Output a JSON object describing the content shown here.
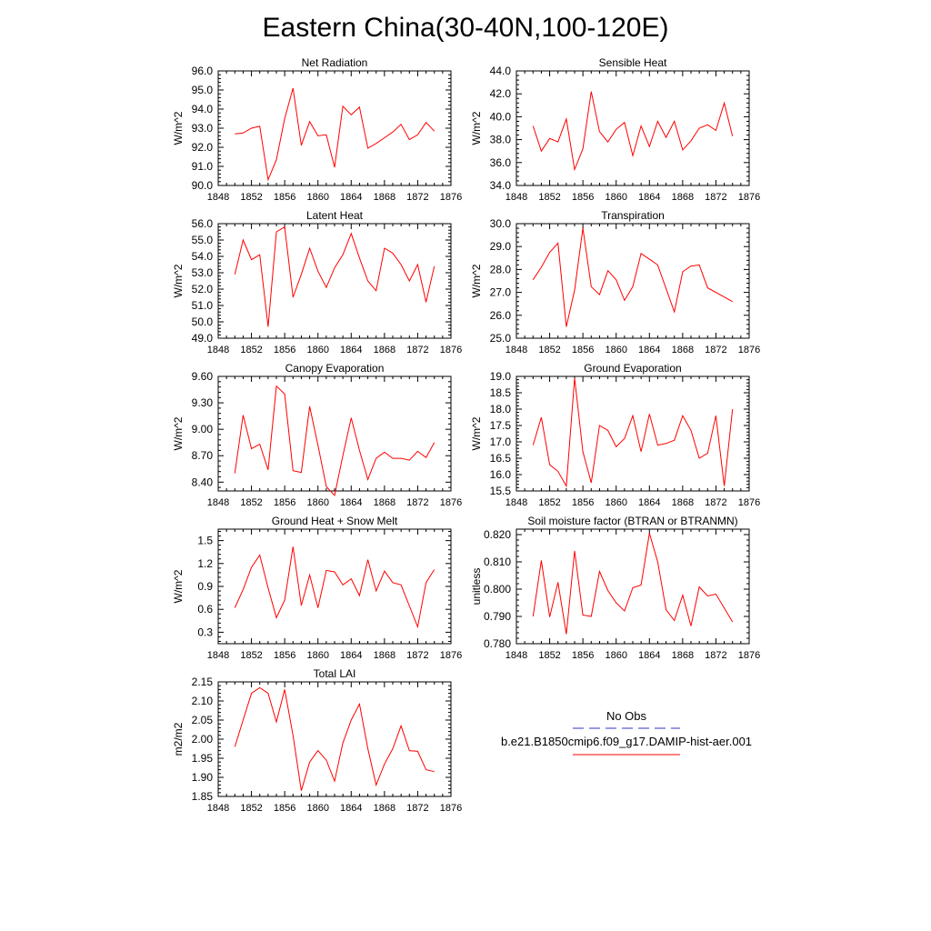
{
  "page": {
    "title": "Eastern China(30-40N,100-120E)"
  },
  "legend": {
    "obs_label": "No Obs",
    "model_label": "b.e21.B1850cmip6.f09_g17.DAMIP-hist-aer.001",
    "obs_color": "#3333cc",
    "model_color": "#ff0000"
  },
  "chart_data": [
    {
      "type": "line",
      "title": "Net Radiation",
      "ylabel": "W/m^2",
      "xlim": [
        1848,
        1876
      ],
      "xticks": [
        "1848",
        "1852",
        "1856",
        "1860",
        "1864",
        "1868",
        "1872",
        "1876"
      ],
      "ylim": [
        90,
        96
      ],
      "yticks": [
        "90.0",
        "91.0",
        "92.0",
        "93.0",
        "94.0",
        "95.0",
        "96.0"
      ],
      "series": [
        {
          "color": "#ff0000",
          "x": [
            1850,
            1851,
            1852,
            1853,
            1854,
            1855,
            1856,
            1857,
            1858,
            1859,
            1860,
            1861,
            1862,
            1863,
            1864,
            1865,
            1866,
            1867,
            1868,
            1869,
            1870,
            1871,
            1872,
            1873,
            1874
          ],
          "values": [
            92.7,
            92.75,
            93.0,
            93.1,
            90.3,
            91.35,
            93.5,
            95.1,
            92.1,
            93.35,
            92.6,
            92.65,
            90.95,
            94.15,
            93.7,
            94.1,
            91.95,
            92.2,
            92.5,
            92.8,
            93.2,
            92.4,
            92.65,
            93.3,
            92.85
          ]
        }
      ]
    },
    {
      "type": "line",
      "title": "Sensible Heat",
      "ylabel": "W/m^2",
      "xlim": [
        1848,
        1876
      ],
      "xticks": [
        "1848",
        "1852",
        "1856",
        "1860",
        "1864",
        "1868",
        "1872",
        "1876"
      ],
      "ylim": [
        34,
        44
      ],
      "yticks": [
        "34.0",
        "36.0",
        "38.0",
        "40.0",
        "42.0",
        "44.0"
      ],
      "series": [
        {
          "color": "#ff0000",
          "x": [
            1850,
            1851,
            1852,
            1853,
            1854,
            1855,
            1856,
            1857,
            1858,
            1859,
            1860,
            1861,
            1862,
            1863,
            1864,
            1865,
            1866,
            1867,
            1868,
            1869,
            1870,
            1871,
            1872,
            1873,
            1874
          ],
          "values": [
            39.2,
            37.0,
            38.1,
            37.8,
            39.8,
            35.4,
            37.2,
            42.2,
            38.7,
            37.8,
            38.9,
            39.5,
            36.6,
            39.2,
            37.4,
            39.6,
            38.2,
            39.6,
            37.1,
            37.9,
            39.0,
            39.3,
            38.8,
            41.2,
            38.3
          ]
        }
      ]
    },
    {
      "type": "line",
      "title": "Latent Heat",
      "ylabel": "W/m^2",
      "xlim": [
        1848,
        1876
      ],
      "xticks": [
        "1848",
        "1852",
        "1856",
        "1860",
        "1864",
        "1868",
        "1872",
        "1876"
      ],
      "ylim": [
        49,
        56
      ],
      "yticks": [
        "49.0",
        "50.0",
        "51.0",
        "52.0",
        "53.0",
        "54.0",
        "55.0",
        "56.0"
      ],
      "series": [
        {
          "color": "#ff0000",
          "x": [
            1850,
            1851,
            1852,
            1853,
            1854,
            1855,
            1856,
            1857,
            1858,
            1859,
            1860,
            1861,
            1862,
            1863,
            1864,
            1865,
            1866,
            1867,
            1868,
            1869,
            1870,
            1871,
            1872,
            1873,
            1874
          ],
          "values": [
            52.9,
            55.0,
            53.8,
            54.1,
            49.7,
            55.5,
            55.8,
            51.5,
            52.9,
            54.5,
            53.1,
            52.1,
            53.3,
            54.1,
            55.4,
            53.9,
            52.5,
            51.9,
            54.5,
            54.2,
            53.5,
            52.5,
            53.5,
            51.2,
            53.4
          ]
        }
      ]
    },
    {
      "type": "line",
      "title": "Transpiration",
      "ylabel": "W/m^2",
      "xlim": [
        1848,
        1876
      ],
      "xticks": [
        "1848",
        "1852",
        "1856",
        "1860",
        "1864",
        "1868",
        "1872",
        "1876"
      ],
      "ylim": [
        25,
        30
      ],
      "yticks": [
        "25.0",
        "26.0",
        "27.0",
        "28.0",
        "29.0",
        "30.0"
      ],
      "series": [
        {
          "color": "#ff0000",
          "x": [
            1850,
            1851,
            1852,
            1853,
            1854,
            1855,
            1856,
            1857,
            1858,
            1859,
            1860,
            1861,
            1862,
            1863,
            1864,
            1865,
            1867,
            1868,
            1869,
            1870,
            1871,
            1874
          ],
          "values": [
            27.55,
            28.1,
            28.75,
            29.15,
            25.5,
            27.1,
            29.8,
            27.25,
            26.9,
            27.95,
            27.55,
            26.65,
            27.25,
            28.7,
            28.45,
            28.2,
            26.15,
            27.9,
            28.15,
            28.2,
            27.2,
            26.6
          ]
        }
      ]
    },
    {
      "type": "line",
      "title": "Canopy Evaporation",
      "ylabel": "W/m^2",
      "xlim": [
        1848,
        1876
      ],
      "xticks": [
        "1848",
        "1852",
        "1856",
        "1860",
        "1864",
        "1868",
        "1872",
        "1876"
      ],
      "ylim": [
        8.3,
        9.6
      ],
      "yticks": [
        "8.40",
        "8.70",
        "9.00",
        "9.30",
        "9.60"
      ],
      "series": [
        {
          "color": "#ff0000",
          "x": [
            1850,
            1851,
            1852,
            1853,
            1854,
            1855,
            1856,
            1857,
            1858,
            1859,
            1860,
            1861,
            1862,
            1863,
            1864,
            1865,
            1866,
            1867,
            1868,
            1869,
            1870,
            1871,
            1872,
            1873,
            1874
          ],
          "values": [
            8.5,
            9.16,
            8.78,
            8.83,
            8.54,
            9.49,
            9.4,
            8.53,
            8.51,
            9.26,
            8.82,
            8.35,
            8.25,
            8.7,
            9.13,
            8.76,
            8.43,
            8.67,
            8.74,
            8.67,
            8.67,
            8.65,
            8.75,
            8.68,
            8.85
          ]
        }
      ]
    },
    {
      "type": "line",
      "title": "Ground Evaporation",
      "ylabel": "W/m^2",
      "xlim": [
        1848,
        1876
      ],
      "xticks": [
        "1848",
        "1852",
        "1856",
        "1860",
        "1864",
        "1868",
        "1872",
        "1876"
      ],
      "ylim": [
        15.5,
        19
      ],
      "yticks": [
        "15.5",
        "16.0",
        "16.5",
        "17.0",
        "17.5",
        "18.0",
        "18.5",
        "19.0"
      ],
      "series": [
        {
          "color": "#ff0000",
          "x": [
            1850,
            1851,
            1852,
            1853,
            1854,
            1855,
            1856,
            1857,
            1858,
            1859,
            1860,
            1861,
            1862,
            1863,
            1864,
            1865,
            1866,
            1867,
            1868,
            1869,
            1870,
            1871,
            1872,
            1873,
            1874
          ],
          "values": [
            16.9,
            17.75,
            16.3,
            16.1,
            15.65,
            18.95,
            16.7,
            15.75,
            17.5,
            17.35,
            16.85,
            17.1,
            17.8,
            16.7,
            17.85,
            16.9,
            16.95,
            17.05,
            17.8,
            17.35,
            16.5,
            16.65,
            17.8,
            15.65,
            18.0
          ]
        }
      ]
    },
    {
      "type": "line",
      "title": "Ground Heat + Snow Melt",
      "ylabel": "W/m^2",
      "xlim": [
        1848,
        1876
      ],
      "xticks": [
        "1848",
        "1852",
        "1856",
        "1860",
        "1864",
        "1868",
        "1872",
        "1876"
      ],
      "ylim": [
        0.15,
        1.65
      ],
      "yticks": [
        "0.3",
        "0.6",
        "0.9",
        "1.2",
        "1.5"
      ],
      "series": [
        {
          "color": "#ff0000",
          "x": [
            1850,
            1851,
            1852,
            1853,
            1854,
            1855,
            1856,
            1857,
            1858,
            1859,
            1860,
            1861,
            1862,
            1863,
            1864,
            1865,
            1866,
            1867,
            1868,
            1869,
            1870,
            1872,
            1873,
            1874
          ],
          "values": [
            0.62,
            0.86,
            1.15,
            1.31,
            0.88,
            0.49,
            0.72,
            1.42,
            0.65,
            1.05,
            0.62,
            1.11,
            1.09,
            0.92,
            1.0,
            0.78,
            1.25,
            0.84,
            1.1,
            0.95,
            0.92,
            0.37,
            0.95,
            1.12
          ]
        }
      ]
    },
    {
      "type": "line",
      "title": "Soil moisture factor (BTRAN or BTRANMN)",
      "ylabel": "unitless",
      "xlim": [
        1848,
        1876
      ],
      "xticks": [
        "1848",
        "1852",
        "1856",
        "1860",
        "1864",
        "1868",
        "1872",
        "1876"
      ],
      "ylim": [
        0.78,
        0.822
      ],
      "yticks": [
        "0.780",
        "0.790",
        "0.800",
        "0.810",
        "0.820"
      ],
      "series": [
        {
          "color": "#ff0000",
          "x": [
            1850,
            1851,
            1852,
            1853,
            1854,
            1855,
            1856,
            1857,
            1858,
            1859,
            1860,
            1861,
            1862,
            1863,
            1864,
            1865,
            1866,
            1867,
            1868,
            1869,
            1870,
            1871,
            1872,
            1874
          ],
          "values": [
            0.79,
            0.8105,
            0.7898,
            0.8025,
            0.7835,
            0.814,
            0.7905,
            0.79,
            0.8065,
            0.7995,
            0.795,
            0.792,
            0.8005,
            0.8015,
            0.8205,
            0.81,
            0.7925,
            0.7885,
            0.7978,
            0.7865,
            0.8008,
            0.7975,
            0.7982,
            0.788
          ]
        }
      ]
    },
    {
      "type": "line",
      "title": "Total LAI",
      "ylabel": "m2/m2",
      "xlim": [
        1848,
        1876
      ],
      "xticks": [
        "1848",
        "1852",
        "1856",
        "1860",
        "1864",
        "1868",
        "1872",
        "1876"
      ],
      "ylim": [
        1.85,
        2.15
      ],
      "yticks": [
        "1.85",
        "1.90",
        "1.95",
        "2.00",
        "2.05",
        "2.10",
        "2.15"
      ],
      "series": [
        {
          "color": "#ff0000",
          "x": [
            1850,
            1851,
            1852,
            1853,
            1854,
            1855,
            1856,
            1857,
            1858,
            1859,
            1860,
            1861,
            1862,
            1863,
            1864,
            1865,
            1866,
            1867,
            1868,
            1869,
            1870,
            1871,
            1872,
            1873,
            1874
          ],
          "values": [
            1.98,
            2.05,
            2.12,
            2.135,
            2.12,
            2.045,
            2.13,
            2.01,
            1.865,
            1.94,
            1.97,
            1.945,
            1.89,
            1.99,
            2.05,
            2.092,
            1.975,
            1.88,
            1.935,
            1.975,
            2.035,
            1.97,
            1.968,
            1.92,
            1.915
          ]
        }
      ]
    }
  ]
}
